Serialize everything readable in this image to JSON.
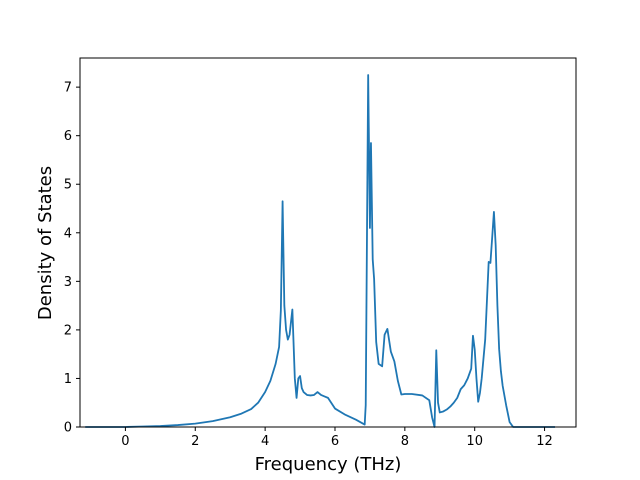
{
  "chart_data": {
    "type": "line",
    "title": "",
    "xlabel": "Frequency (THz)",
    "ylabel": "Density of States",
    "xlim": [
      -1.3,
      12.9
    ],
    "ylim": [
      0,
      7.6
    ],
    "xticks": [
      0,
      2,
      4,
      6,
      8,
      10,
      12
    ],
    "yticks": [
      0,
      1,
      2,
      3,
      4,
      5,
      6,
      7
    ],
    "grid": false,
    "legend": "none",
    "series": [
      {
        "color": "#1f77b4",
        "x": [
          -1.15,
          -0.5,
          0.0,
          0.5,
          1.0,
          1.5,
          2.0,
          2.5,
          3.0,
          3.3,
          3.6,
          3.8,
          4.0,
          4.15,
          4.3,
          4.4,
          4.45,
          4.5,
          4.55,
          4.6,
          4.65,
          4.7,
          4.78,
          4.85,
          4.9,
          4.95,
          5.0,
          5.05,
          5.1,
          5.2,
          5.3,
          5.4,
          5.5,
          5.6,
          5.7,
          5.8,
          6.0,
          6.3,
          6.6,
          6.85,
          6.88,
          6.95,
          7.0,
          7.03,
          7.08,
          7.12,
          7.18,
          7.25,
          7.35,
          7.42,
          7.5,
          7.6,
          7.7,
          7.8,
          7.9,
          8.0,
          8.2,
          8.5,
          8.7,
          8.78,
          8.85,
          8.9,
          8.95,
          9.0,
          9.1,
          9.2,
          9.3,
          9.4,
          9.5,
          9.6,
          9.7,
          9.8,
          9.9,
          9.95,
          10.0,
          10.05,
          10.1,
          10.15,
          10.2,
          10.3,
          10.4,
          10.45,
          10.5,
          10.55,
          10.6,
          10.65,
          10.7,
          10.75,
          10.8,
          10.9,
          11.0,
          11.1,
          11.2,
          11.5,
          12.3
        ],
        "y": [
          0.0,
          0.0,
          0.0,
          0.01,
          0.02,
          0.04,
          0.07,
          0.12,
          0.2,
          0.27,
          0.37,
          0.5,
          0.72,
          0.95,
          1.3,
          1.65,
          2.4,
          4.65,
          2.5,
          2.0,
          1.8,
          1.9,
          2.42,
          1.0,
          0.6,
          1.0,
          1.05,
          0.8,
          0.72,
          0.66,
          0.65,
          0.66,
          0.72,
          0.66,
          0.63,
          0.6,
          0.38,
          0.25,
          0.15,
          0.05,
          0.45,
          7.25,
          4.1,
          5.85,
          3.45,
          3.05,
          1.75,
          1.3,
          1.25,
          1.9,
          2.02,
          1.55,
          1.35,
          0.95,
          0.67,
          0.68,
          0.68,
          0.65,
          0.55,
          0.2,
          0.0,
          1.58,
          0.5,
          0.3,
          0.32,
          0.36,
          0.42,
          0.5,
          0.6,
          0.78,
          0.86,
          1.0,
          1.2,
          1.88,
          1.6,
          1.0,
          0.52,
          0.7,
          1.0,
          1.8,
          3.4,
          3.38,
          3.9,
          4.43,
          3.75,
          2.5,
          1.6,
          1.15,
          0.85,
          0.45,
          0.1,
          0.0,
          0.0,
          0.0,
          0.0
        ]
      }
    ]
  }
}
